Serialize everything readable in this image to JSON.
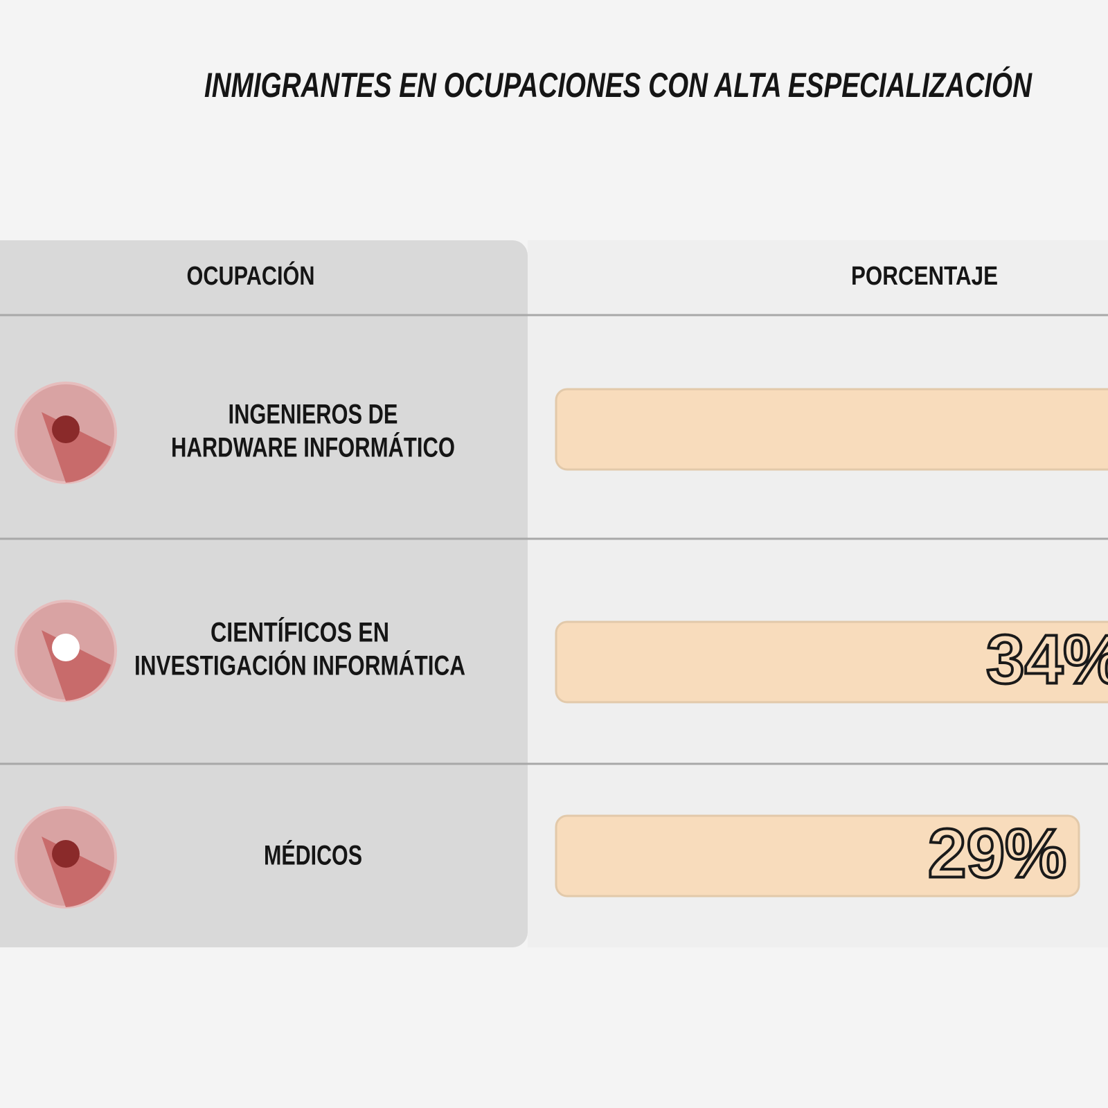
{
  "title": "INMIGRANTES EN OCUPACIONES CON ALTA ESPECIALIZACIÓN",
  "table": {
    "headers": [
      "OCUPACIÓN",
      "PORCENTAJE"
    ],
    "rows": [
      {
        "occupation": [
          "INGENIEROS DE",
          "HARDWARE INFORMÁTICO"
        ]
      },
      {
        "occupation": [
          "CIENTÍFICOS EN",
          "INVESTIGACIÓN INFORMÁTICA"
        ],
        "percentage": "34%"
      },
      {
        "occupation": [
          "MÉDICOS"
        ],
        "percentage": "29%"
      }
    ]
  }
}
